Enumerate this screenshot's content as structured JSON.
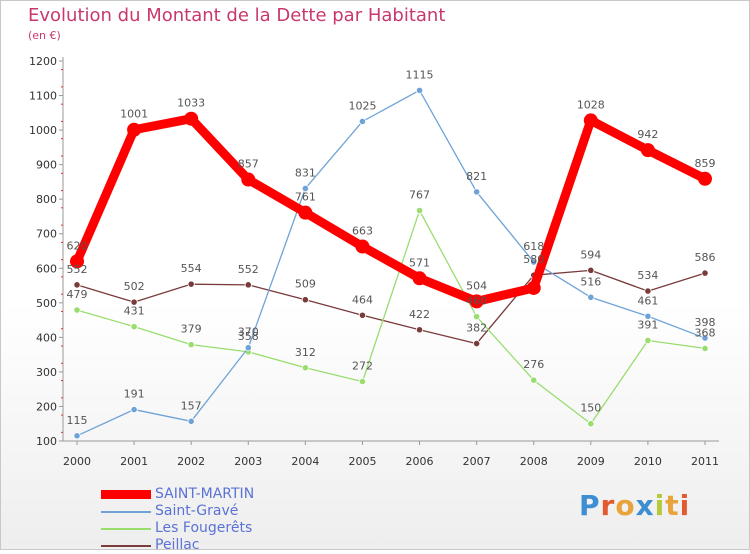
{
  "title": "Evolution du Montant de la Dette par Habitant",
  "unit": "(en €)",
  "logo": "Proxiti",
  "chart_data": {
    "type": "line",
    "title": "Evolution du Montant de la Dette par Habitant",
    "ylabel": "(en €)",
    "ylim": [
      100,
      1200
    ],
    "y_ticks": [
      100,
      200,
      300,
      400,
      500,
      600,
      700,
      800,
      900,
      1000,
      1100,
      1200
    ],
    "categories": [
      "2000",
      "2001",
      "2002",
      "2003",
      "2004",
      "2005",
      "2006",
      "2007",
      "2008",
      "2009",
      "2010",
      "2011"
    ],
    "grid": false,
    "legend_position": "bottom-left",
    "series": [
      {
        "name": "SAINT-MARTIN",
        "color": "#ff0000",
        "values": [
          620,
          1001,
          1033,
          857,
          761,
          663,
          571,
          504,
          543,
          1028,
          942,
          859
        ]
      },
      {
        "name": "Saint-Gravé",
        "color": "#6fa3d8",
        "values": [
          115,
          191,
          157,
          370,
          831,
          1025,
          1115,
          821,
          618,
          516,
          461,
          398
        ]
      },
      {
        "name": "Les Fougerêts",
        "color": "#98dd6d",
        "values": [
          479,
          431,
          379,
          358,
          312,
          272,
          767,
          460,
          276,
          150,
          391,
          368
        ]
      },
      {
        "name": "Peillac",
        "color": "#7a3b3b",
        "values": [
          552,
          502,
          554,
          552,
          509,
          464,
          422,
          382,
          580,
          594,
          534,
          586
        ]
      }
    ],
    "value_labels": [
      [
        "620",
        "1001",
        "1033",
        "857",
        "761",
        "663",
        "571",
        "504",
        "",
        "1028",
        "942",
        "859"
      ],
      [
        "115",
        "191",
        "157",
        "370",
        "831",
        "1025",
        "1115",
        "821",
        "618",
        "516",
        "461",
        "398"
      ],
      [
        "479",
        "431",
        "379",
        "358",
        "312",
        "272",
        "767",
        "460",
        "276",
        "150",
        "391",
        "368"
      ],
      [
        "552",
        "502",
        "554",
        "552",
        "509",
        "464",
        "422",
        "382",
        "580",
        "594",
        "534",
        "586"
      ]
    ]
  }
}
